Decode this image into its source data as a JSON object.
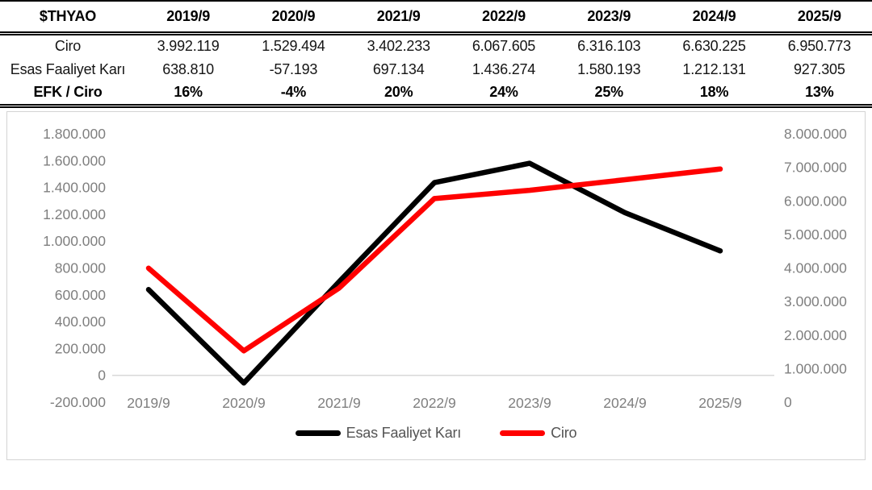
{
  "table": {
    "header": [
      "$THYAO",
      "2019/9",
      "2020/9",
      "2021/9",
      "2022/9",
      "2023/9",
      "2024/9",
      "2025/9"
    ],
    "rows": [
      {
        "label": "Ciro",
        "cells": [
          "3.992.119",
          "1.529.494",
          "3.402.233",
          "6.067.605",
          "6.316.103",
          "6.630.225",
          "6.950.773"
        ]
      },
      {
        "label": "Esas Faaliyet Karı",
        "cells": [
          "638.810",
          "-57.193",
          "697.134",
          "1.436.274",
          "1.580.193",
          "1.212.131",
          "927.305"
        ]
      },
      {
        "label": "EFK / Ciro",
        "cells": [
          "16%",
          "-4%",
          "20%",
          "24%",
          "25%",
          "18%",
          "13%"
        ]
      }
    ]
  },
  "chart_data": {
    "type": "line",
    "categories": [
      "2019/9",
      "2020/9",
      "2021/9",
      "2022/9",
      "2023/9",
      "2024/9",
      "2025/9"
    ],
    "series": [
      {
        "name": "Esas Faaliyet Karı",
        "axis": "left",
        "color": "#000000",
        "values": [
          638810,
          -57193,
          697134,
          1436274,
          1580193,
          1212131,
          927305
        ]
      },
      {
        "name": "Ciro",
        "axis": "right",
        "color": "#ff0000",
        "values": [
          3992119,
          1529494,
          3402233,
          6067605,
          6316103,
          6630225,
          6950773
        ]
      }
    ],
    "left_axis": {
      "min": -200000,
      "max": 1800000,
      "step": 200000
    },
    "right_axis": {
      "min": 0,
      "max": 8000000,
      "step": 1000000
    },
    "legend_position": "bottom",
    "gridlines": "zero-line-only",
    "colors": {
      "axis_label": "#7f7f7f",
      "zero_line": "#d9d9d9",
      "legend_text": "#545454"
    }
  }
}
